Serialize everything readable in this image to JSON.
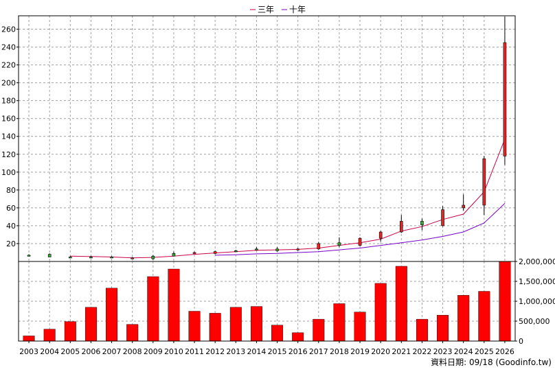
{
  "legend": {
    "series": [
      {
        "name": "三年",
        "color": "#cc0044"
      },
      {
        "name": "十年",
        "color": "#7700cc"
      }
    ]
  },
  "footer": {
    "source": "資料日期: 09/18 (Goodinfo.tw)"
  },
  "chart_data": [
    {
      "type": "candlestick",
      "categories": [
        "2003",
        "2004",
        "2005",
        "2006",
        "2007",
        "2008",
        "2009",
        "2010",
        "2011",
        "2012",
        "2013",
        "2014",
        "2015",
        "2016",
        "2017",
        "2018",
        "2019",
        "2020",
        "2021",
        "2022",
        "2023",
        "2024",
        "2025",
        "2026"
      ],
      "ylim": [
        0,
        275
      ],
      "yticks": [
        20,
        40,
        60,
        80,
        100,
        120,
        140,
        160,
        180,
        200,
        220,
        240,
        260
      ],
      "grid": true,
      "up_color": "#33aa33",
      "down_color": "#ee2222",
      "candles": [
        {
          "open": 7,
          "high": 8,
          "low": 6,
          "close": 7
        },
        {
          "open": 5,
          "high": 9,
          "low": 5,
          "close": 8
        },
        {
          "open": 5,
          "high": 6,
          "low": 4,
          "close": 5
        },
        {
          "open": 5,
          "high": 6,
          "low": 4,
          "close": 5
        },
        {
          "open": 5,
          "high": 6,
          "low": 4,
          "close": 5
        },
        {
          "open": 4,
          "high": 5,
          "low": 3,
          "close": 3
        },
        {
          "open": 3,
          "high": 7,
          "low": 2,
          "close": 6
        },
        {
          "open": 6,
          "high": 11,
          "low": 6,
          "close": 9
        },
        {
          "open": 10,
          "high": 11,
          "low": 9,
          "close": 9
        },
        {
          "open": 11,
          "high": 12,
          "low": 8,
          "close": 9
        },
        {
          "open": 12,
          "high": 13,
          "low": 11,
          "close": 12
        },
        {
          "open": 14,
          "high": 16,
          "low": 13,
          "close": 14
        },
        {
          "open": 12,
          "high": 16,
          "low": 11,
          "close": 14
        },
        {
          "open": 14,
          "high": 15,
          "low": 12,
          "close": 13
        },
        {
          "open": 20,
          "high": 22,
          "low": 13,
          "close": 14
        },
        {
          "open": 18,
          "high": 27,
          "low": 16,
          "close": 21
        },
        {
          "open": 26,
          "high": 27,
          "low": 17,
          "close": 18
        },
        {
          "open": 33,
          "high": 34,
          "low": 22,
          "close": 26
        },
        {
          "open": 45,
          "high": 52,
          "low": 32,
          "close": 33
        },
        {
          "open": 41,
          "high": 48,
          "low": 35,
          "close": 45
        },
        {
          "open": 58,
          "high": 62,
          "low": 39,
          "close": 40
        },
        {
          "open": 63,
          "high": 75,
          "low": 57,
          "close": 60
        },
        {
          "open": 115,
          "high": 118,
          "low": 52,
          "close": 63
        },
        {
          "open": 245,
          "high": 274,
          "low": 108,
          "close": 118
        }
      ],
      "series": [
        {
          "name": "三年",
          "color": "#cc0044",
          "values": [
            null,
            null,
            6,
            5.5,
            5,
            4,
            4.5,
            6,
            8,
            9.5,
            11,
            12.5,
            13,
            13.5,
            15,
            18,
            21,
            25,
            34,
            39,
            47,
            53,
            78,
            137
          ]
        },
        {
          "name": "十年",
          "color": "#7700cc",
          "values": [
            null,
            null,
            null,
            null,
            null,
            null,
            null,
            null,
            null,
            7,
            7.5,
            8.5,
            9,
            10,
            11,
            13,
            15,
            18,
            21,
            24,
            28,
            33,
            43,
            65
          ]
        }
      ]
    },
    {
      "type": "bar",
      "categories": [
        "2003",
        "2004",
        "2005",
        "2006",
        "2007",
        "2008",
        "2009",
        "2010",
        "2011",
        "2012",
        "2013",
        "2014",
        "2015",
        "2016",
        "2017",
        "2018",
        "2019",
        "2020",
        "2021",
        "2022",
        "2023",
        "2024",
        "2025",
        "2026"
      ],
      "ylim": [
        0,
        2000000
      ],
      "yticks": [
        0,
        500000,
        1000000,
        1500000,
        2000000
      ],
      "ytick_labels": [
        "0",
        "500,000",
        "1,000,000",
        "1,500,000",
        "2,000,000"
      ],
      "color": "#ff0000",
      "values": [
        130000,
        300000,
        490000,
        850000,
        1330000,
        420000,
        1620000,
        1810000,
        750000,
        700000,
        850000,
        870000,
        400000,
        210000,
        550000,
        940000,
        730000,
        1450000,
        1880000,
        550000,
        650000,
        1150000,
        1250000,
        2010000
      ]
    }
  ]
}
